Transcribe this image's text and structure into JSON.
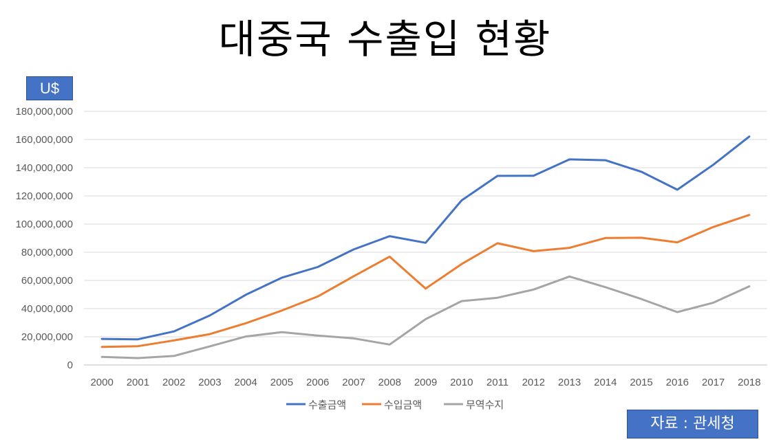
{
  "title": "대중국 수출입 현황",
  "unit_label": "U$",
  "source_label": "자료 : 관세청",
  "chart_data": {
    "type": "line",
    "title": "대중국 수출입 현황",
    "ylabel": "U$",
    "ylim": [
      0,
      180000000
    ],
    "y_ticks": [
      0,
      20000000,
      40000000,
      60000000,
      80000000,
      100000000,
      120000000,
      140000000,
      160000000,
      180000000
    ],
    "y_tick_labels": [
      "0",
      "20,000,000",
      "40,000,000",
      "60,000,000",
      "80,000,000",
      "100,000,000",
      "120,000,000",
      "140,000,000",
      "160,000,000",
      "180,000,000"
    ],
    "grid": true,
    "legend_position": "bottom",
    "categories": [
      "2000",
      "2001",
      "2002",
      "2003",
      "2004",
      "2005",
      "2006",
      "2007",
      "2008",
      "2009",
      "2010",
      "2011",
      "2012",
      "2013",
      "2014",
      "2015",
      "2016",
      "2017",
      "2018"
    ],
    "series": [
      {
        "name": "수출금액",
        "color": "#4472c4",
        "values": [
          18500000,
          18200000,
          23800000,
          35100000,
          49800000,
          61900000,
          69500000,
          82000000,
          91400000,
          86700000,
          116800000,
          134200000,
          134300000,
          145900000,
          145300000,
          137100000,
          124400000,
          142100000,
          162100000
        ]
      },
      {
        "name": "수입금액",
        "color": "#ed7d31",
        "values": [
          12800000,
          13300000,
          17400000,
          21900000,
          29600000,
          38600000,
          48600000,
          63000000,
          76900000,
          54200000,
          71600000,
          86400000,
          80800000,
          83100000,
          90100000,
          90300000,
          87000000,
          97900000,
          106500000
        ]
      },
      {
        "name": "무역수지",
        "color": "#a5a5a5",
        "values": [
          5700000,
          4900000,
          6400000,
          13200000,
          20200000,
          23300000,
          20900000,
          18900000,
          14500000,
          32500000,
          45300000,
          47700000,
          53500000,
          62800000,
          55200000,
          46800000,
          37500000,
          44200000,
          55800000
        ]
      }
    ]
  }
}
